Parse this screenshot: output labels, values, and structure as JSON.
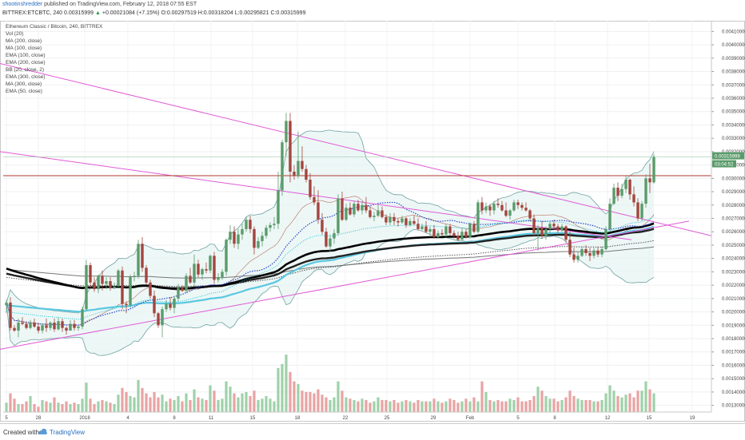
{
  "header": {
    "author": "shootinshredder",
    "published": "published on TradingView.com, February 12, 2018 07:55 EST",
    "symbol": "BITTREX:ETCBTC, 240",
    "last": "0.00315999",
    "arrow": "▲",
    "change": "+0.00021084 (+7.15%)",
    "o_label": "O:",
    "o_value": "0.00297519",
    "h_label": "H:",
    "h_value": "0.00318204",
    "l_label": "L:",
    "l_value": "0.00295821",
    "c_label": "C:",
    "c_value": "0.00315999"
  },
  "legend": [
    "Ethereum Classic / Bitcoin, 240, BITTREX",
    "Vol (20)",
    "MA (200, close)",
    "MA (100, close)",
    "EMA (100, close)",
    "EMA (200, close)",
    "BB (20, close, 2)",
    "EMA (300, close)",
    "MA (300, close)",
    "EMA (50, close)"
  ],
  "footer": {
    "created_with": "Created with",
    "brand": "TradingView"
  },
  "colors": {
    "up": "#5a9b6a",
    "down": "#a3453e",
    "bb": "#6fa3a0",
    "bb_fill": "#e6f3f2",
    "trend": "#e05ad6",
    "resistance": "#b23a30",
    "ema50": "#29c4d8",
    "ma100": "#2c49c8",
    "ema100": "#5ac7e0",
    "ma200": "#555555",
    "ema200": "#222222",
    "ma300": "#000000",
    "ema300": "#777777",
    "volume_up": "#9fd1a9",
    "volume_down": "#e9a3a3",
    "price_tag": "#5a9b6a"
  },
  "chart_data": {
    "type": "candlestick",
    "ylim": [
      0.00125,
      0.00418
    ],
    "y_ticks": [
      "0.00410000",
      "0.00400000",
      "0.00390000",
      "0.00380000",
      "0.00370000",
      "0.00360000",
      "0.00350000",
      "0.00340000",
      "0.00330000",
      "0.00320000",
      "0.00310000",
      "0.00300000",
      "0.00290000",
      "0.00280000",
      "0.00270000",
      "0.00260000",
      "0.00250000",
      "0.00240000",
      "0.00230000",
      "0.00220000",
      "0.00210000",
      "0.00200000",
      "0.00190000",
      "0.00180000",
      "0.00170000",
      "0.00160000",
      "0.00150000",
      "0.00140000",
      "0.00130000"
    ],
    "x_ticks": [
      "5",
      "28",
      "2018",
      "4",
      "8",
      "11",
      "15",
      "18",
      "22",
      "25",
      "29",
      "Feb",
      "5",
      "8",
      "12",
      "15",
      "19"
    ],
    "last_price_tag": "0.00315999",
    "countdown_tag": "03:04:52",
    "resistance_level": 0.00302,
    "candles": [
      [
        0.00205,
        0.00209,
        0.00199,
        0.00207
      ],
      [
        0.00207,
        0.00211,
        0.00186,
        0.00188
      ],
      [
        0.00188,
        0.0019,
        0.00185,
        0.00186
      ],
      [
        0.00186,
        0.00195,
        0.00181,
        0.00192
      ],
      [
        0.00192,
        0.00196,
        0.0019,
        0.00191
      ],
      [
        0.00191,
        0.00193,
        0.00187,
        0.00188
      ],
      [
        0.00188,
        0.00194,
        0.00187,
        0.00192
      ],
      [
        0.00192,
        0.00195,
        0.00188,
        0.00189
      ],
      [
        0.00189,
        0.00192,
        0.00184,
        0.00186
      ],
      [
        0.00186,
        0.00191,
        0.00184,
        0.0019
      ],
      [
        0.0019,
        0.00195,
        0.00185,
        0.00188
      ],
      [
        0.00188,
        0.00193,
        0.00186,
        0.00192
      ],
      [
        0.00192,
        0.00195,
        0.00185,
        0.00187
      ],
      [
        0.00187,
        0.00196,
        0.00186,
        0.00193
      ],
      [
        0.00193,
        0.00195,
        0.00185,
        0.00188
      ],
      [
        0.00188,
        0.00189,
        0.00183,
        0.00186
      ],
      [
        0.00186,
        0.00194,
        0.00186,
        0.00191
      ],
      [
        0.00191,
        0.00194,
        0.00186,
        0.00188
      ],
      [
        0.00188,
        0.0019,
        0.00186,
        0.00189
      ],
      [
        0.00189,
        0.00204,
        0.00187,
        0.00202
      ],
      [
        0.00202,
        0.00239,
        0.00201,
        0.00235
      ],
      [
        0.00235,
        0.00237,
        0.00218,
        0.00222
      ],
      [
        0.00222,
        0.00226,
        0.00215,
        0.00217
      ],
      [
        0.00217,
        0.00228,
        0.00214,
        0.00227
      ],
      [
        0.00227,
        0.00231,
        0.00216,
        0.00221
      ],
      [
        0.00221,
        0.00226,
        0.00217,
        0.00223
      ],
      [
        0.00223,
        0.00226,
        0.00216,
        0.00218
      ],
      [
        0.00218,
        0.00222,
        0.00217,
        0.00219
      ],
      [
        0.00219,
        0.00232,
        0.00219,
        0.00231
      ],
      [
        0.00231,
        0.00234,
        0.00202,
        0.00206
      ],
      [
        0.00206,
        0.00208,
        0.00199,
        0.00205
      ],
      [
        0.00205,
        0.00228,
        0.00203,
        0.00226
      ],
      [
        0.00226,
        0.0023,
        0.00223,
        0.00227
      ],
      [
        0.00227,
        0.00254,
        0.00225,
        0.00251
      ],
      [
        0.00251,
        0.00256,
        0.0023,
        0.00233
      ],
      [
        0.00233,
        0.00235,
        0.0022,
        0.00222
      ],
      [
        0.00222,
        0.00224,
        0.0021,
        0.00212
      ],
      [
        0.00212,
        0.00216,
        0.00196,
        0.00199
      ],
      [
        0.00199,
        0.002,
        0.00188,
        0.0019
      ],
      [
        0.0019,
        0.00204,
        0.00181,
        0.00202
      ],
      [
        0.00202,
        0.00209,
        0.002,
        0.00206
      ],
      [
        0.00206,
        0.00211,
        0.00201,
        0.00203
      ],
      [
        0.00203,
        0.00212,
        0.00199,
        0.0021
      ],
      [
        0.0021,
        0.00221,
        0.00208,
        0.00218
      ],
      [
        0.00218,
        0.0022,
        0.00215,
        0.00216
      ],
      [
        0.00216,
        0.00229,
        0.00214,
        0.00227
      ],
      [
        0.00227,
        0.00233,
        0.00221,
        0.00222
      ],
      [
        0.00222,
        0.00243,
        0.00219,
        0.00236
      ],
      [
        0.00236,
        0.00239,
        0.00226,
        0.00228
      ],
      [
        0.00228,
        0.00233,
        0.00224,
        0.00232
      ],
      [
        0.00232,
        0.00237,
        0.00229,
        0.00231
      ],
      [
        0.00231,
        0.00243,
        0.00229,
        0.00242
      ],
      [
        0.00242,
        0.00245,
        0.00221,
        0.00224
      ],
      [
        0.00224,
        0.00229,
        0.00222,
        0.00226
      ],
      [
        0.00226,
        0.00232,
        0.00224,
        0.0023
      ],
      [
        0.0023,
        0.00255,
        0.00227,
        0.00254
      ],
      [
        0.00254,
        0.00265,
        0.00251,
        0.0026
      ],
      [
        0.0026,
        0.00264,
        0.00248,
        0.00251
      ],
      [
        0.00251,
        0.00262,
        0.00247,
        0.00258
      ],
      [
        0.00258,
        0.00266,
        0.00254,
        0.00262
      ],
      [
        0.00262,
        0.00271,
        0.0026,
        0.00269
      ],
      [
        0.00269,
        0.00272,
        0.00259,
        0.00262
      ],
      [
        0.00262,
        0.00264,
        0.00243,
        0.00248
      ],
      [
        0.00248,
        0.00256,
        0.00247,
        0.00253
      ],
      [
        0.00253,
        0.0026,
        0.00249,
        0.00257
      ],
      [
        0.00257,
        0.00265,
        0.00255,
        0.00263
      ],
      [
        0.00263,
        0.00267,
        0.0026,
        0.00265
      ],
      [
        0.00265,
        0.00271,
        0.00262,
        0.00266
      ],
      [
        0.00266,
        0.00305,
        0.00262,
        0.00291
      ],
      [
        0.00291,
        0.00329,
        0.00287,
        0.00327
      ],
      [
        0.00327,
        0.00349,
        0.00317,
        0.00343
      ],
      [
        0.00343,
        0.00349,
        0.00297,
        0.00305
      ],
      [
        0.00305,
        0.0031,
        0.00299,
        0.00302
      ],
      [
        0.00302,
        0.00335,
        0.003,
        0.00313
      ],
      [
        0.00313,
        0.00324,
        0.00305,
        0.00307
      ],
      [
        0.00307,
        0.0031,
        0.00297,
        0.00299
      ],
      [
        0.00299,
        0.00304,
        0.00284,
        0.00286
      ],
      [
        0.00286,
        0.00294,
        0.0028,
        0.00282
      ],
      [
        0.00282,
        0.00291,
        0.00266,
        0.00269
      ],
      [
        0.00269,
        0.00274,
        0.00258,
        0.0026
      ],
      [
        0.0026,
        0.00263,
        0.00248,
        0.00249
      ],
      [
        0.00249,
        0.00258,
        0.00245,
        0.00255
      ],
      [
        0.00255,
        0.00262,
        0.00251,
        0.00259
      ],
      [
        0.00259,
        0.00288,
        0.00257,
        0.00285
      ],
      [
        0.00285,
        0.0029,
        0.00268,
        0.00269
      ],
      [
        0.00269,
        0.00281,
        0.00268,
        0.00278
      ],
      [
        0.00278,
        0.00282,
        0.00272,
        0.00273
      ],
      [
        0.00273,
        0.00283,
        0.00271,
        0.00281
      ],
      [
        0.00281,
        0.00284,
        0.00275,
        0.00276
      ],
      [
        0.00276,
        0.00283,
        0.00273,
        0.0028
      ],
      [
        0.0028,
        0.00286,
        0.00274,
        0.00276
      ],
      [
        0.00276,
        0.00279,
        0.0027,
        0.00271
      ],
      [
        0.00271,
        0.00275,
        0.00268,
        0.00272
      ],
      [
        0.00272,
        0.0028,
        0.00271,
        0.00276
      ],
      [
        0.00276,
        0.00279,
        0.0027,
        0.00271
      ],
      [
        0.00271,
        0.00273,
        0.00265,
        0.00267
      ],
      [
        0.00267,
        0.00274,
        0.00265,
        0.00271
      ],
      [
        0.00271,
        0.00274,
        0.00265,
        0.00268
      ],
      [
        0.00268,
        0.0027,
        0.00264,
        0.00267
      ],
      [
        0.00267,
        0.00272,
        0.00266,
        0.0027
      ],
      [
        0.0027,
        0.00271,
        0.00263,
        0.00265
      ],
      [
        0.00265,
        0.0027,
        0.00264,
        0.00268
      ],
      [
        0.00268,
        0.00272,
        0.00265,
        0.00266
      ],
      [
        0.00266,
        0.0027,
        0.00261,
        0.00262
      ],
      [
        0.00262,
        0.00266,
        0.00261,
        0.00264
      ],
      [
        0.00264,
        0.00268,
        0.00259,
        0.0026
      ],
      [
        0.0026,
        0.00264,
        0.00257,
        0.00262
      ],
      [
        0.00262,
        0.00265,
        0.00255,
        0.00256
      ],
      [
        0.00256,
        0.00261,
        0.00255,
        0.00259
      ],
      [
        0.00259,
        0.00262,
        0.00257,
        0.00258
      ],
      [
        0.00258,
        0.00266,
        0.00256,
        0.00264
      ],
      [
        0.00264,
        0.00266,
        0.00257,
        0.00259
      ],
      [
        0.00259,
        0.00261,
        0.00255,
        0.00257
      ],
      [
        0.00257,
        0.0026,
        0.00253,
        0.00254
      ],
      [
        0.00254,
        0.00263,
        0.00254,
        0.0026
      ],
      [
        0.0026,
        0.00262,
        0.00255,
        0.00256
      ],
      [
        0.00256,
        0.00267,
        0.00255,
        0.00266
      ],
      [
        0.00266,
        0.00268,
        0.00259,
        0.0026
      ],
      [
        0.0026,
        0.00284,
        0.00259,
        0.00282
      ],
      [
        0.00282,
        0.00286,
        0.00273,
        0.00276
      ],
      [
        0.00276,
        0.00282,
        0.00274,
        0.00279
      ],
      [
        0.00279,
        0.00281,
        0.00272,
        0.00276
      ],
      [
        0.00276,
        0.00283,
        0.00273,
        0.00281
      ],
      [
        0.00281,
        0.00285,
        0.00278,
        0.0028
      ],
      [
        0.0028,
        0.00283,
        0.00275,
        0.00276
      ],
      [
        0.00276,
        0.00282,
        0.00271,
        0.00272
      ],
      [
        0.00272,
        0.00277,
        0.00269,
        0.00276
      ],
      [
        0.00276,
        0.00284,
        0.00275,
        0.00282
      ],
      [
        0.00282,
        0.00284,
        0.00277,
        0.0028
      ],
      [
        0.0028,
        0.00282,
        0.00276,
        0.00278
      ],
      [
        0.00278,
        0.00282,
        0.00275,
        0.00276
      ],
      [
        0.00276,
        0.00277,
        0.00268,
        0.0027
      ],
      [
        0.0027,
        0.00273,
        0.00257,
        0.00259
      ],
      [
        0.00259,
        0.00265,
        0.00246,
        0.00263
      ],
      [
        0.00263,
        0.00268,
        0.00255,
        0.00257
      ],
      [
        0.00257,
        0.00264,
        0.00254,
        0.00262
      ],
      [
        0.00262,
        0.00268,
        0.00259,
        0.00266
      ],
      [
        0.00266,
        0.00269,
        0.00262,
        0.00264
      ],
      [
        0.00264,
        0.00266,
        0.00259,
        0.00261
      ],
      [
        0.00261,
        0.00266,
        0.0026,
        0.00264
      ],
      [
        0.00264,
        0.00265,
        0.00252,
        0.00254
      ],
      [
        0.00254,
        0.0026,
        0.00241,
        0.00243
      ],
      [
        0.00243,
        0.00248,
        0.00237,
        0.00239
      ],
      [
        0.00239,
        0.00245,
        0.00237,
        0.00242
      ],
      [
        0.00242,
        0.00249,
        0.00241,
        0.00247
      ],
      [
        0.00247,
        0.0025,
        0.00242,
        0.00244
      ],
      [
        0.00244,
        0.00248,
        0.00238,
        0.00242
      ],
      [
        0.00242,
        0.00248,
        0.0024,
        0.00246
      ],
      [
        0.00246,
        0.00249,
        0.00241,
        0.00243
      ],
      [
        0.00243,
        0.00249,
        0.00241,
        0.00247
      ],
      [
        0.00247,
        0.00264,
        0.00246,
        0.00262
      ],
      [
        0.00262,
        0.00285,
        0.0026,
        0.00281
      ],
      [
        0.00281,
        0.00296,
        0.0028,
        0.00293
      ],
      [
        0.00293,
        0.00297,
        0.00283,
        0.00287
      ],
      [
        0.00287,
        0.00296,
        0.00285,
        0.00292
      ],
      [
        0.00292,
        0.00302,
        0.00289,
        0.00299
      ],
      [
        0.00299,
        0.003,
        0.00284,
        0.00288
      ],
      [
        0.00288,
        0.00294,
        0.00279,
        0.00282
      ],
      [
        0.00282,
        0.00285,
        0.00268,
        0.0027
      ],
      [
        0.0027,
        0.00283,
        0.00268,
        0.00281
      ],
      [
        0.00281,
        0.00303,
        0.00278,
        0.003
      ],
      [
        0.003,
        0.00311,
        0.00289,
        0.00297
      ],
      [
        0.00297,
        0.00318,
        0.00296,
        0.00316
      ]
    ],
    "volume_axis_max": 0.00175,
    "volume_bars": [
      0.00132,
      0.00139,
      0.00135,
      0.00131,
      0.00131,
      0.00133,
      0.00137,
      0.00131,
      0.00129,
      0.00134,
      0.00133,
      0.00132,
      0.00136,
      0.00132,
      0.00131,
      0.00133,
      0.00131,
      0.00132,
      0.00131,
      0.00135,
      0.00147,
      0.00135,
      0.00131,
      0.00133,
      0.00134,
      0.00133,
      0.00132,
      0.00131,
      0.00138,
      0.00143,
      0.0014,
      0.00137,
      0.00136,
      0.00149,
      0.00143,
      0.00139,
      0.00136,
      0.0014,
      0.00136,
      0.00138,
      0.00133,
      0.00135,
      0.00134,
      0.00137,
      0.00133,
      0.00139,
      0.00134,
      0.00142,
      0.00136,
      0.00135,
      0.00134,
      0.00145,
      0.00141,
      0.00134,
      0.00135,
      0.00148,
      0.00144,
      0.00139,
      0.00136,
      0.00139,
      0.0014,
      0.00137,
      0.00141,
      0.00134,
      0.00135,
      0.00137,
      0.00135,
      0.00133,
      0.00158,
      0.00161,
      0.00168,
      0.00155,
      0.00148,
      0.00146,
      0.00141,
      0.0014,
      0.0014,
      0.00139,
      0.00142,
      0.00138,
      0.00136,
      0.00134,
      0.00136,
      0.00148,
      0.00141,
      0.00136,
      0.00135,
      0.00134,
      0.00133,
      0.00135,
      0.00134,
      0.00132,
      0.00133,
      0.00136,
      0.00134,
      0.00134,
      0.00133,
      0.00134,
      0.00132,
      0.00133,
      0.00134,
      0.00133,
      0.00132,
      0.00134,
      0.00133,
      0.00133,
      0.00133,
      0.00135,
      0.00133,
      0.00132,
      0.00133,
      0.00135,
      0.00134,
      0.00132,
      0.00133,
      0.00135,
      0.00133,
      0.00136,
      0.00133,
      0.00148,
      0.0014,
      0.00134,
      0.00133,
      0.00134,
      0.00133,
      0.00133,
      0.00135,
      0.00134,
      0.00136,
      0.00133,
      0.00133,
      0.00134,
      0.00137,
      0.00144,
      0.00141,
      0.00137,
      0.00135,
      0.00135,
      0.00133,
      0.00134,
      0.00136,
      0.00141,
      0.00137,
      0.00135,
      0.00134,
      0.00134,
      0.00134,
      0.00133,
      0.00133,
      0.00134,
      0.00139,
      0.00145,
      0.00141,
      0.00137,
      0.00136,
      0.00138,
      0.00139,
      0.00136,
      0.00141,
      0.00141,
      0.00148,
      0.00142,
      0.00139
    ]
  }
}
